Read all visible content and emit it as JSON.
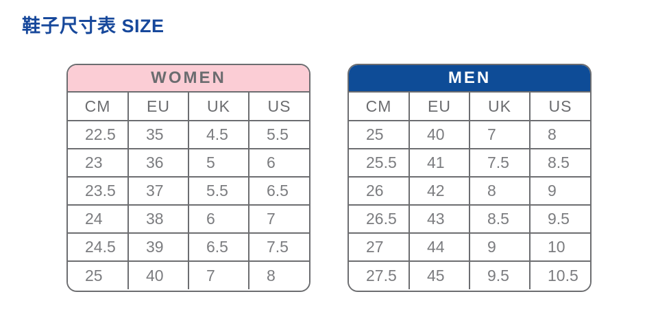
{
  "page_title": "鞋子尺寸表 SIZE",
  "colors": {
    "title_blue": "#17489B",
    "women_header_pink": "#FBCDD5",
    "men_header_blue": "#0E4C97",
    "border_gray": "#6C6D70",
    "cell_text_gray": "#7B7C7F"
  },
  "chart_data": [
    {
      "type": "table",
      "title": "WOMEN",
      "columns": [
        "CM",
        "EU",
        "UK",
        "US"
      ],
      "rows": [
        [
          "22.5",
          "35",
          "4.5",
          "5.5"
        ],
        [
          "23",
          "36",
          "5",
          "6"
        ],
        [
          "23.5",
          "37",
          "5.5",
          "6.5"
        ],
        [
          "24",
          "38",
          "6",
          "7"
        ],
        [
          "24.5",
          "39",
          "6.5",
          "7.5"
        ],
        [
          "25",
          "40",
          "7",
          "8"
        ]
      ]
    },
    {
      "type": "table",
      "title": "MEN",
      "columns": [
        "CM",
        "EU",
        "UK",
        "US"
      ],
      "rows": [
        [
          "25",
          "40",
          "7",
          "8"
        ],
        [
          "25.5",
          "41",
          "7.5",
          "8.5"
        ],
        [
          "26",
          "42",
          "8",
          "9"
        ],
        [
          "26.5",
          "43",
          "8.5",
          "9.5"
        ],
        [
          "27",
          "44",
          "9",
          "10"
        ],
        [
          "27.5",
          "45",
          "9.5",
          "10.5"
        ]
      ]
    }
  ]
}
